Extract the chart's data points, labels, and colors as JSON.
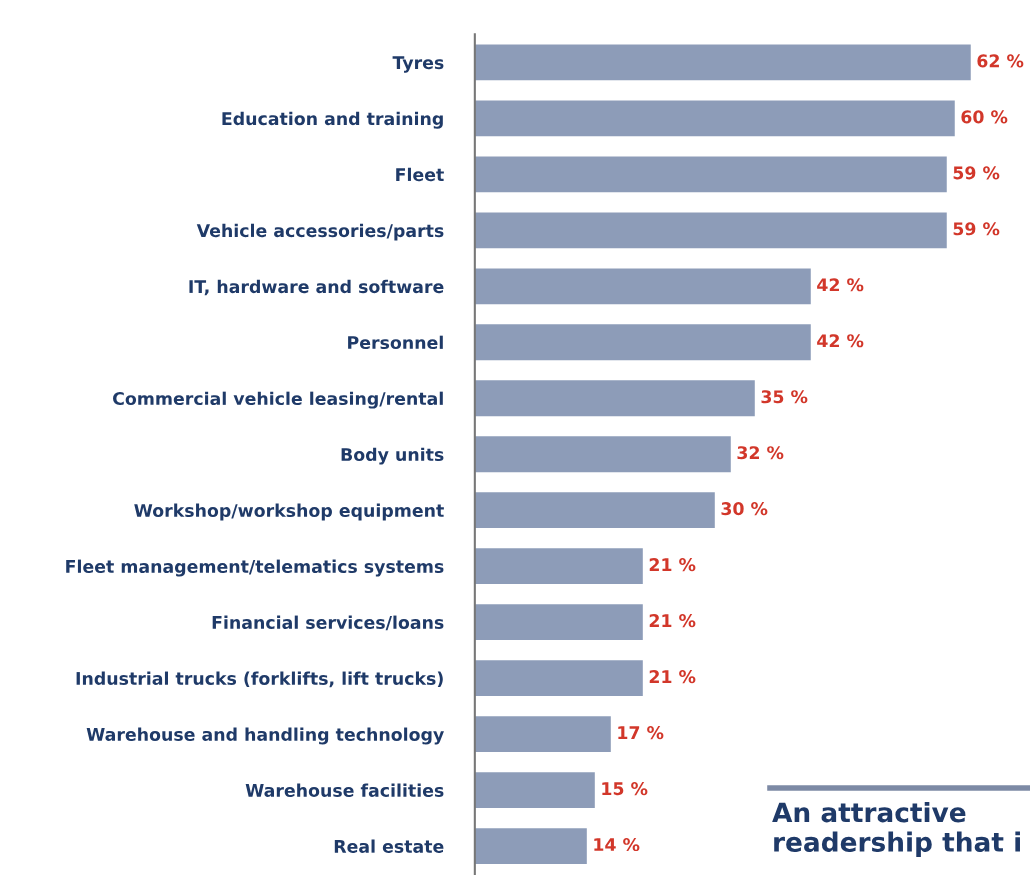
{
  "chart_data": {
    "type": "bar",
    "orientation": "horizontal",
    "categories": [
      "Tyres",
      "Education and training",
      "Fleet",
      "Vehicle accessories/parts",
      "IT, hardware and software",
      "Personnel",
      "Commercial vehicle leasing/rental",
      "Body units",
      "Workshop/workshop equipment",
      "Fleet management/telematics systems",
      "Financial services/loans",
      "Industrial trucks (forklifts, lift trucks)",
      "Warehouse and handling technology",
      "Warehouse facilities",
      "Real estate"
    ],
    "values": [
      62,
      60,
      59,
      59,
      42,
      42,
      35,
      32,
      30,
      21,
      21,
      21,
      17,
      15,
      14
    ],
    "value_labels": [
      "62 %",
      "60 %",
      "59 %",
      "59 %",
      "42 %",
      "42 %",
      "35 %",
      "32 %",
      "30 %",
      "21 %",
      "21 %",
      "21 %",
      "17 %",
      "15 %",
      "14 %"
    ],
    "color": "#8d9cb8",
    "annotations": [
      "An attractive readership that i"
    ]
  }
}
